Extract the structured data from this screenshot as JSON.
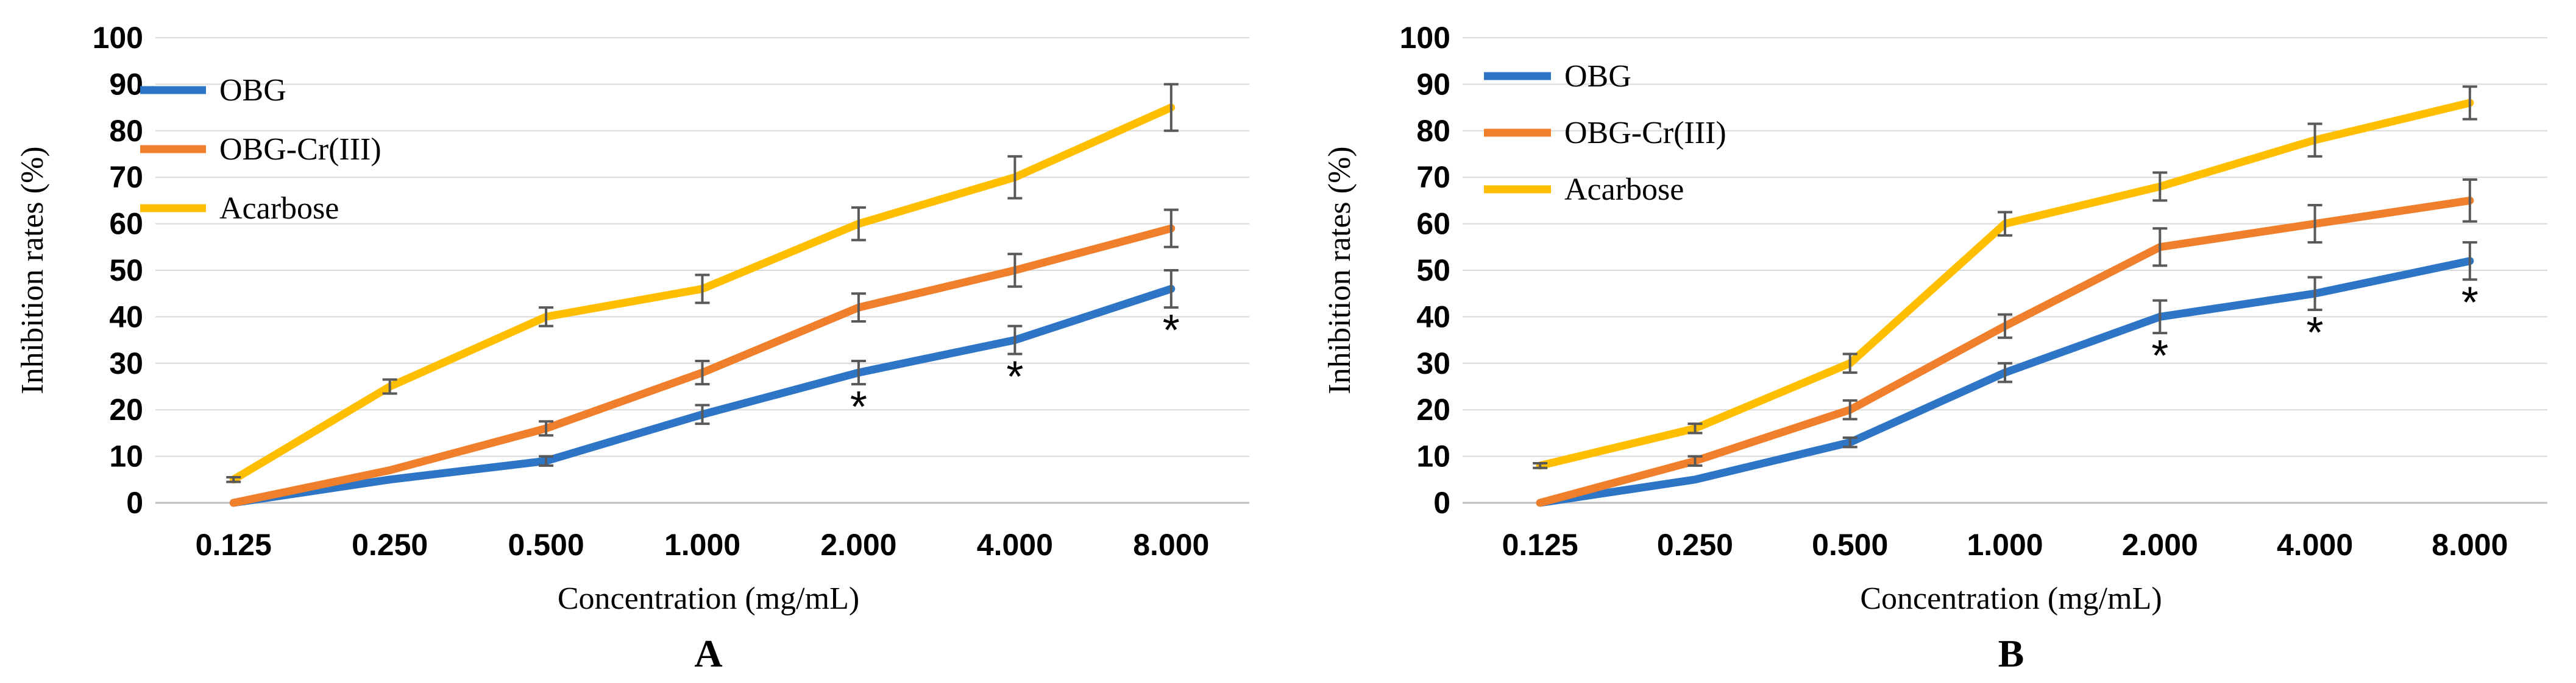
{
  "chart_data": [
    {
      "type": "line",
      "panel_label": "A",
      "xlabel": "Concentration (mg/mL)",
      "ylabel": "Inhibition rates (%)",
      "categories": [
        "0.125",
        "0.250",
        "0.500",
        "1.000",
        "2.000",
        "4.000",
        "8.000"
      ],
      "ylim": [
        0,
        100
      ],
      "yticks": [
        "0",
        "10",
        "20",
        "30",
        "40",
        "50",
        "60",
        "70",
        "80",
        "90",
        "100"
      ],
      "grid": true,
      "legend_position": "top-left",
      "series": [
        {
          "name": "OBG",
          "color": "#2E75C6",
          "values": [
            0,
            5,
            9,
            19,
            28,
            35,
            46
          ],
          "errors": [
            0,
            0,
            1,
            2,
            2.5,
            3,
            4
          ],
          "stars": [
            false,
            false,
            false,
            false,
            true,
            true,
            true
          ]
        },
        {
          "name": "OBG-Cr(III)",
          "color": "#F07F2C",
          "values": [
            0,
            7,
            16,
            28,
            42,
            50,
            59
          ],
          "errors": [
            0,
            0,
            1.5,
            2.5,
            3,
            3.5,
            4
          ],
          "stars": [
            false,
            false,
            false,
            false,
            false,
            false,
            false
          ]
        },
        {
          "name": "Acarbose",
          "color": "#FFBF00",
          "values": [
            5,
            25,
            40,
            46,
            60,
            70,
            85
          ],
          "errors": [
            0.5,
            1.5,
            2,
            3,
            3.5,
            4.5,
            5
          ],
          "stars": [
            false,
            false,
            false,
            false,
            false,
            false,
            false
          ]
        }
      ],
      "star_symbol": "*"
    },
    {
      "type": "line",
      "panel_label": "B",
      "xlabel": "Concentration (mg/mL)",
      "ylabel": "Inhibition rates (%)",
      "categories": [
        "0.125",
        "0.250",
        "0.500",
        "1.000",
        "2.000",
        "4.000",
        "8.000"
      ],
      "ylim": [
        0,
        100
      ],
      "yticks": [
        "0",
        "10",
        "20",
        "30",
        "40",
        "50",
        "60",
        "70",
        "80",
        "90",
        "100"
      ],
      "grid": true,
      "legend_position": "top-left",
      "series": [
        {
          "name": "OBG",
          "color": "#2E75C6",
          "values": [
            0,
            5,
            13,
            28,
            40,
            45,
            52
          ],
          "errors": [
            0,
            0,
            1,
            2,
            3.5,
            3.5,
            4
          ],
          "stars": [
            false,
            false,
            false,
            false,
            true,
            true,
            true
          ]
        },
        {
          "name": "OBG-Cr(III)",
          "color": "#F07F2C",
          "values": [
            0,
            9,
            20,
            38,
            55,
            60,
            65
          ],
          "errors": [
            0,
            1,
            2,
            2.5,
            4,
            4,
            4.5
          ],
          "stars": [
            false,
            false,
            false,
            false,
            false,
            false,
            false
          ]
        },
        {
          "name": "Acarbose",
          "color": "#FFBF00",
          "values": [
            8,
            16,
            30,
            60,
            68,
            78,
            86
          ],
          "errors": [
            0.5,
            1,
            2,
            2.5,
            3,
            3.5,
            3.5
          ],
          "stars": [
            false,
            false,
            false,
            false,
            false,
            false,
            false
          ]
        }
      ],
      "star_symbol": "*"
    }
  ]
}
